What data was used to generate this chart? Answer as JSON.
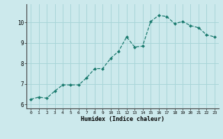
{
  "x": [
    0,
    1,
    2,
    3,
    4,
    5,
    6,
    7,
    8,
    9,
    10,
    11,
    12,
    13,
    14,
    15,
    16,
    17,
    18,
    19,
    20,
    21,
    22,
    23
  ],
  "y": [
    6.25,
    6.35,
    6.3,
    6.65,
    6.95,
    6.95,
    6.95,
    7.3,
    7.75,
    7.75,
    8.25,
    8.6,
    9.3,
    8.8,
    8.85,
    10.05,
    10.35,
    10.3,
    9.95,
    10.05,
    9.85,
    9.75,
    9.4,
    9.3
  ],
  "xlabel": "Humidex (Indice chaleur)",
  "bg_color": "#cce9ec",
  "grid_color": "#a8d5d8",
  "line_color": "#1a7a6e",
  "marker_color": "#1a7a6e",
  "ylim": [
    5.8,
    10.9
  ],
  "xlim": [
    -0.5,
    23.5
  ],
  "yticks": [
    6,
    7,
    8,
    9,
    10
  ],
  "xticks": [
    0,
    1,
    2,
    3,
    4,
    5,
    6,
    7,
    8,
    9,
    10,
    11,
    12,
    13,
    14,
    15,
    16,
    17,
    18,
    19,
    20,
    21,
    22,
    23
  ]
}
